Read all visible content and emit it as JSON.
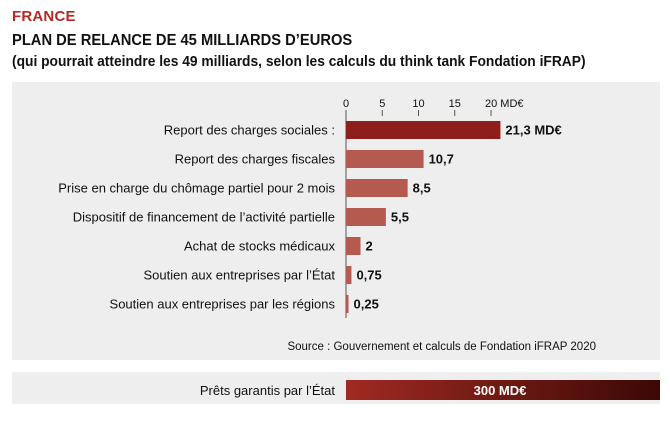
{
  "header": {
    "kicker": "FRANCE",
    "title": "PLAN DE RELANCE DE 45 MILLIARDS D’EUROS",
    "subtitle": "(qui pourrait atteindre les 49 milliards, selon les calculs du think tank Fondation iFRAP)"
  },
  "chart_data": {
    "type": "bar",
    "orientation": "horizontal",
    "categories": [
      "Report des charges sociales :",
      "Report des charges fiscales",
      "Prise en charge du chômage partiel pour 2 mois",
      "Dispositif de financement de l’activité partielle",
      "Achat de stocks médicaux",
      "Soutien aux entreprises par l’État",
      "Soutien aux entreprises par les régions"
    ],
    "values": [
      21.3,
      10.7,
      8.5,
      5.5,
      2,
      0.75,
      0.25
    ],
    "value_labels": [
      "21,3 MD€",
      "10,7",
      "8,5",
      "5,5",
      "2",
      "0,75",
      "0,25"
    ],
    "xticks": [
      "0",
      "5",
      "10",
      "15",
      "20 MD€"
    ],
    "xtick_values": [
      0,
      5,
      10,
      15,
      20
    ],
    "xlim": [
      0,
      24
    ],
    "source": "Source : Gouvernement et calculs de Fondation iFRAP 2020",
    "colors": {
      "highlight": "#8e1e1c",
      "bar": "#b55a4f"
    }
  },
  "loan": {
    "label": "Prêts garantis par l’État",
    "value_label": "300 MD€",
    "color_start": "#a02a22",
    "color_end": "#3c0805"
  }
}
